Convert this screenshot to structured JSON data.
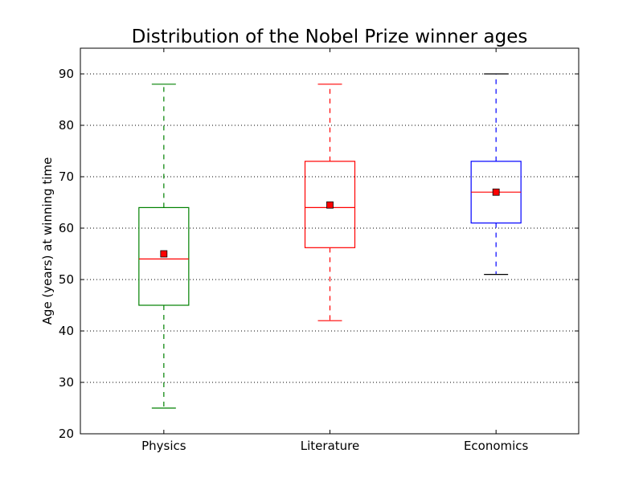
{
  "chart_data": {
    "type": "box",
    "title": "Distribution of the Nobel Prize winner ages",
    "xlabel": "",
    "ylabel": "Age (years) at winning time",
    "ylim": [
      20,
      95
    ],
    "yticks": [
      20,
      30,
      40,
      50,
      60,
      70,
      80,
      90
    ],
    "grid": "y-dotted",
    "categories": [
      "Physics",
      "Literature",
      "Economics"
    ],
    "boxes": [
      {
        "category": "Physics",
        "whisker_low": 25,
        "q1": 45,
        "median": 54,
        "q3": 64,
        "whisker_high": 88,
        "mean": 55,
        "color": "#008000",
        "cap_low_color": "#008000",
        "cap_high_color": "#008000"
      },
      {
        "category": "Literature",
        "whisker_low": 42,
        "q1": 56.2,
        "median": 64,
        "q3": 73,
        "whisker_high": 88,
        "mean": 64.5,
        "color": "#ff0000",
        "cap_low_color": "#ff0000",
        "cap_high_color": "#ff0000"
      },
      {
        "category": "Economics",
        "whisker_low": 51,
        "q1": 61,
        "median": 67,
        "q3": 73,
        "whisker_high": 90,
        "mean": 67,
        "color": "#0000ff",
        "cap_low_color": "#000000",
        "cap_high_color": "#000000"
      }
    ],
    "median_color": "#ff0000",
    "mean_marker_color": "#ff0000"
  }
}
